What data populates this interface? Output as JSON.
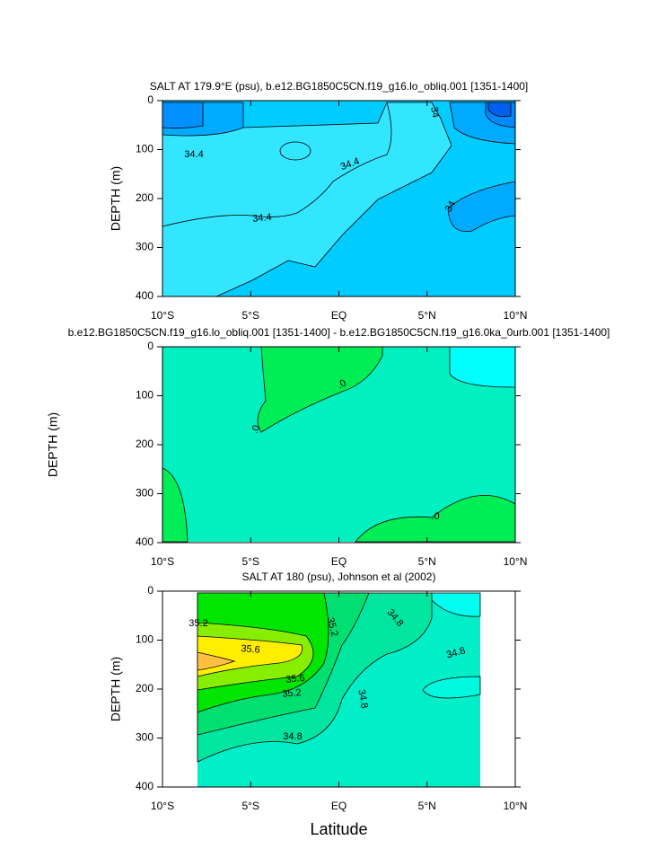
{
  "chart_data": [
    {
      "type": "contour",
      "title": "SALT AT 179.9°E (psu), b.e12.BG1850C5CN.f19_g16.lo_obliq.001 [1351-1400]",
      "ylabel": "DEPTH (m)",
      "xlim": [
        -10,
        10
      ],
      "xticks": [
        {
          "value": -10,
          "label": "10°S"
        },
        {
          "value": -5,
          "label": "5°S"
        },
        {
          "value": 0,
          "label": "EQ"
        },
        {
          "value": 5,
          "label": "5°N"
        },
        {
          "value": 10,
          "label": "10°N"
        }
      ],
      "ylim": [
        400,
        0
      ],
      "yticks": [
        0,
        100,
        200,
        300,
        400
      ],
      "contour_labels": [
        34.4,
        34.4,
        34.4,
        34,
        34
      ]
    },
    {
      "type": "contour",
      "title": "b.e12.BG1850C5CN.f19_g16.lo_obliq.001 [1351-1400] - b.e12.BG1850C5CN.f19_g16.0ka_0urb.001 [1351-1400]",
      "ylabel": "DEPTH (m)",
      "xlim": [
        -10,
        10
      ],
      "xticks": [
        {
          "value": -10,
          "label": "10°S"
        },
        {
          "value": -5,
          "label": "5°S"
        },
        {
          "value": 0,
          "label": "EQ"
        },
        {
          "value": 5,
          "label": "5°N"
        },
        {
          "value": 10,
          "label": "10°N"
        }
      ],
      "ylim": [
        400,
        0
      ],
      "yticks": [
        0,
        100,
        200,
        300,
        400
      ],
      "contour_labels": [
        {
          "value": 0,
          "label": ".0"
        },
        {
          "value": 0,
          "label": ".0"
        },
        {
          "value": 0,
          "label": ".0"
        }
      ]
    },
    {
      "type": "contour",
      "title": "SALT AT 180 (psu), Johnson et al (2002)",
      "ylabel": "DEPTH (m)",
      "xlabel": "Latitude",
      "xlim": [
        -10,
        10
      ],
      "xticks": [
        {
          "value": -10,
          "label": "10°S"
        },
        {
          "value": -5,
          "label": "5°S"
        },
        {
          "value": 0,
          "label": "EQ"
        },
        {
          "value": 5,
          "label": "5°N"
        },
        {
          "value": 10,
          "label": "10°N"
        }
      ],
      "ylim": [
        400,
        0
      ],
      "yticks": [
        0,
        100,
        200,
        300,
        400
      ],
      "contour_labels": [
        35.2,
        35.6,
        35.6,
        35.2,
        35.2,
        34.8,
        34.8,
        34.8,
        34.8
      ]
    }
  ]
}
